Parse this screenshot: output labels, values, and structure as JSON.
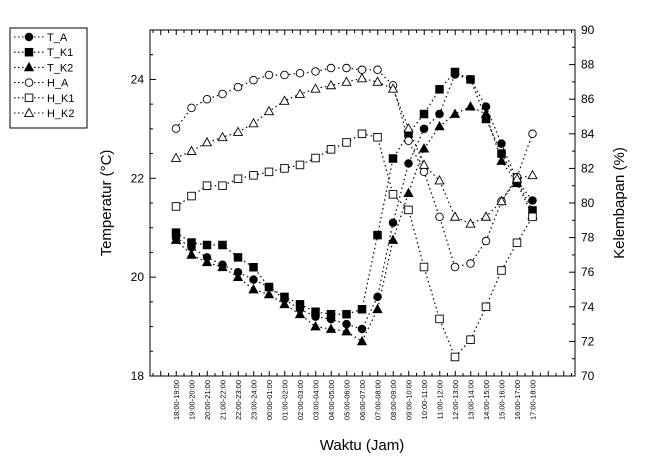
{
  "chart_data": {
    "type": "line",
    "xlabel": "Waktu (Jam)",
    "ylabel": "Temperatur (°C)",
    "y2label": "Kelembapan (%)",
    "ylim": [
      18,
      25
    ],
    "y2lim": [
      70,
      90
    ],
    "yticks": [
      "18",
      "20",
      "22",
      "24"
    ],
    "y2ticks": [
      "70",
      "72",
      "74",
      "76",
      "78",
      "80",
      "82",
      "84",
      "86",
      "88",
      "90"
    ],
    "categories": [
      "18:00-19:00",
      "19:00-20:00",
      "20:00-21:00",
      "21:00-22:00",
      "22:00-23:00",
      "23:00-24:00",
      "00:00-01:00",
      "01:00-02:00",
      "02:00-03:00",
      "03:00-04:00",
      "04:00-05:00",
      "05:00-06:00",
      "06:00-07:00",
      "07:00-08:00",
      "08:00-09:00",
      "09:00-10:00",
      "10:00-11:00",
      "11:00-12:00",
      "12:00-13:00",
      "13:00-14:00",
      "14:00-15:00",
      "15:00-16:00",
      "16:00-17:00",
      "17:00-18:00"
    ],
    "series": [
      {
        "name": "T_A",
        "axis": "left",
        "marker": "circle",
        "filled": true,
        "values": [
          20.8,
          20.6,
          20.4,
          20.25,
          20.1,
          19.95,
          19.8,
          19.55,
          19.35,
          19.2,
          19.15,
          19.05,
          18.95,
          19.6,
          21.1,
          22.3,
          23.0,
          23.3,
          24.1,
          24.0,
          23.45,
          22.7,
          21.95,
          21.55
        ]
      },
      {
        "name": "T_K1",
        "axis": "left",
        "marker": "square",
        "filled": true,
        "values": [
          20.9,
          20.7,
          20.65,
          20.65,
          20.4,
          20.2,
          19.8,
          19.6,
          19.45,
          19.3,
          19.25,
          19.25,
          19.35,
          20.85,
          22.4,
          22.9,
          23.3,
          23.8,
          24.15,
          24.0,
          23.2,
          22.5,
          21.95,
          21.35
        ]
      },
      {
        "name": "T_K2",
        "axis": "left",
        "marker": "triangle",
        "filled": true,
        "values": [
          20.75,
          20.45,
          20.3,
          20.2,
          20.0,
          19.75,
          19.65,
          19.45,
          19.25,
          19.0,
          18.95,
          18.9,
          18.7,
          19.35,
          20.75,
          21.7,
          22.6,
          23.05,
          23.3,
          23.45,
          23.3,
          22.35,
          21.9,
          21.25
        ]
      },
      {
        "name": "H_A",
        "axis": "right",
        "marker": "circle",
        "filled": false,
        "values": [
          84.3,
          85.5,
          86.0,
          86.3,
          86.7,
          87.1,
          87.4,
          87.4,
          87.5,
          87.6,
          87.8,
          87.8,
          87.7,
          87.7,
          86.8,
          83.6,
          81.8,
          79.2,
          76.3,
          76.5,
          77.8,
          80.1,
          81.5,
          84.0
        ]
      },
      {
        "name": "H_K1",
        "axis": "right",
        "marker": "square",
        "filled": false,
        "values": [
          79.8,
          80.4,
          81.0,
          81.0,
          81.4,
          81.6,
          81.8,
          82.0,
          82.2,
          82.6,
          83.1,
          83.5,
          84.0,
          83.8,
          80.5,
          79.6,
          76.3,
          73.3,
          71.1,
          72.1,
          74.0,
          76.1,
          77.7,
          79.2
        ]
      },
      {
        "name": "H_K2",
        "axis": "right",
        "marker": "triangle",
        "filled": false,
        "values": [
          82.6,
          83.0,
          83.5,
          83.8,
          84.1,
          84.6,
          85.3,
          85.9,
          86.3,
          86.6,
          86.8,
          87.0,
          87.2,
          87.0,
          86.6,
          84.3,
          82.2,
          81.3,
          79.2,
          78.8,
          79.2,
          80.1,
          81.4,
          81.6
        ]
      }
    ],
    "legend_placement": "top-left-outside",
    "grid": false
  }
}
